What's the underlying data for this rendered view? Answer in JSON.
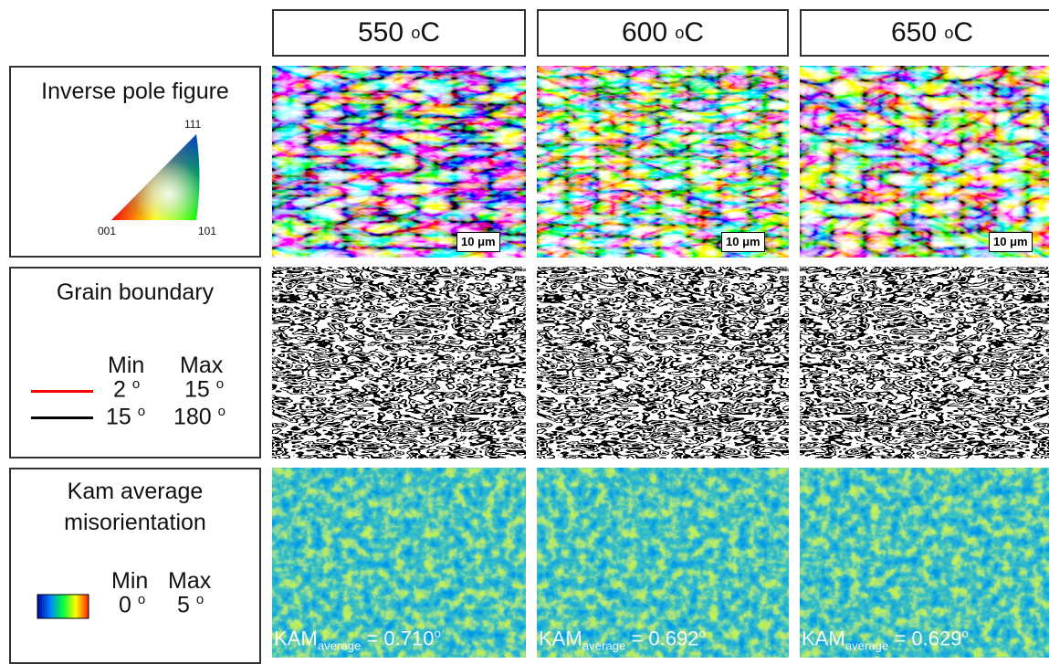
{
  "columns": [
    {
      "temperature": "550",
      "degree": "o",
      "unit": "C"
    },
    {
      "temperature": "600",
      "degree": "o",
      "unit": "C"
    },
    {
      "temperature": "650",
      "degree": "o",
      "unit": "C"
    }
  ],
  "ipf": {
    "label": "Inverse pole figure",
    "corner_111": "111",
    "corner_001": "001",
    "corner_101": "101",
    "scale_bar": "10 μm"
  },
  "grain_boundary": {
    "label": "Grain boundary",
    "min": "Min",
    "max": "Max",
    "lines": [
      {
        "min": "2",
        "min_deg": "o",
        "max": "15",
        "max_deg": "o"
      },
      {
        "min": "15",
        "min_deg": "o",
        "max": "180",
        "max_deg": "o"
      }
    ]
  },
  "kam": {
    "label_line1": "Kam average",
    "label_line2": "misorientation",
    "min": "Min",
    "max": "Max",
    "min_value": "0",
    "min_deg": "o",
    "max_value": "5",
    "max_deg": "o",
    "averages": [
      {
        "name": "KAM",
        "sub": "average",
        "text": " = 0.710",
        "deg": "o"
      },
      {
        "name": "KAM",
        "sub": "average",
        "text": " = 0.692",
        "deg": "o"
      },
      {
        "name": "KAM",
        "sub": "average",
        "text": " = 0.629",
        "deg": "o"
      }
    ]
  }
}
